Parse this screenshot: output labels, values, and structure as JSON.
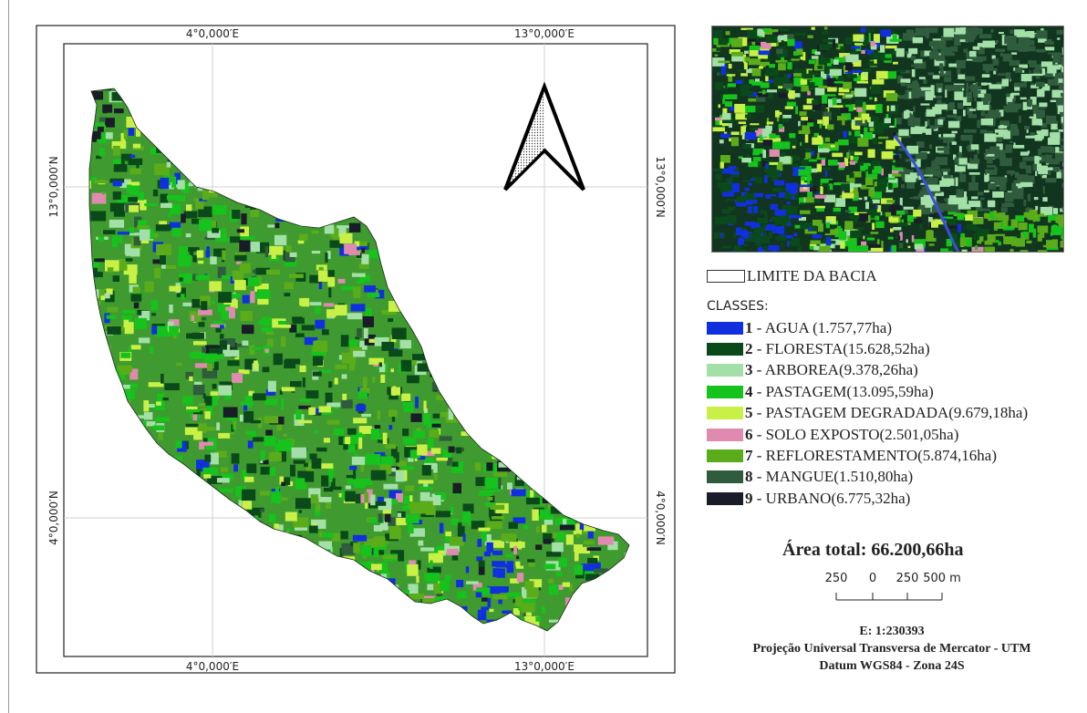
{
  "map": {
    "coord_labels": {
      "top_left": "4°0,000′E",
      "top_right": "13°0,000′E",
      "bottom_left": "4°0,000′E",
      "bottom_right": "13°0,000′E",
      "left_upper": "13°0,000′N",
      "left_lower": "4°0,000′N",
      "right_upper": "13°0,000′N",
      "right_lower": "4°0,000′N"
    }
  },
  "legend": {
    "boundary_label": "LIMITE DA BACIA",
    "classes_title": "CLASSES:",
    "classes": [
      {
        "num": "1",
        "text": " - AGUA (1.757,77ha)",
        "color": "#1030e0"
      },
      {
        "num": "2",
        "text": " - FLORESTA(15.628,52ha)",
        "color": "#0a4a1a"
      },
      {
        "num": "3",
        "text": " - ARBOREA(9.378,26ha)",
        "color": "#a3e0a8"
      },
      {
        "num": "4",
        "text": " - PASTAGEM(13.095,59ha)",
        "color": "#16c21c"
      },
      {
        "num": "5",
        "text": " - PASTAGEM DEGRADADA(9.679,18ha)",
        "color": "#c8f046"
      },
      {
        "num": "6",
        "text": " - SOLO EXPOSTO(2.501,05ha)",
        "color": "#e08ab0"
      },
      {
        "num": "7",
        "text": " - REFLORESTAMENTO(5.874,16ha)",
        "color": "#5aac1a"
      },
      {
        "num": "8",
        "text": " - MANGUE(1.510,80ha)",
        "color": "#2f5c3c"
      },
      {
        "num": "9",
        "text": " - URBANO(6.775,32ha)",
        "color": "#1a1c28"
      }
    ],
    "total_area": "Área total: 66.200,66ha"
  },
  "scalebar": {
    "labels": [
      "250",
      "0",
      "250",
      "500 m"
    ]
  },
  "credits": {
    "scale": "E: 1:230393",
    "projection": "Projeção Universal Transversa de Mercator - UTM",
    "datum": "Datum WGS84 - Zona 24S"
  }
}
